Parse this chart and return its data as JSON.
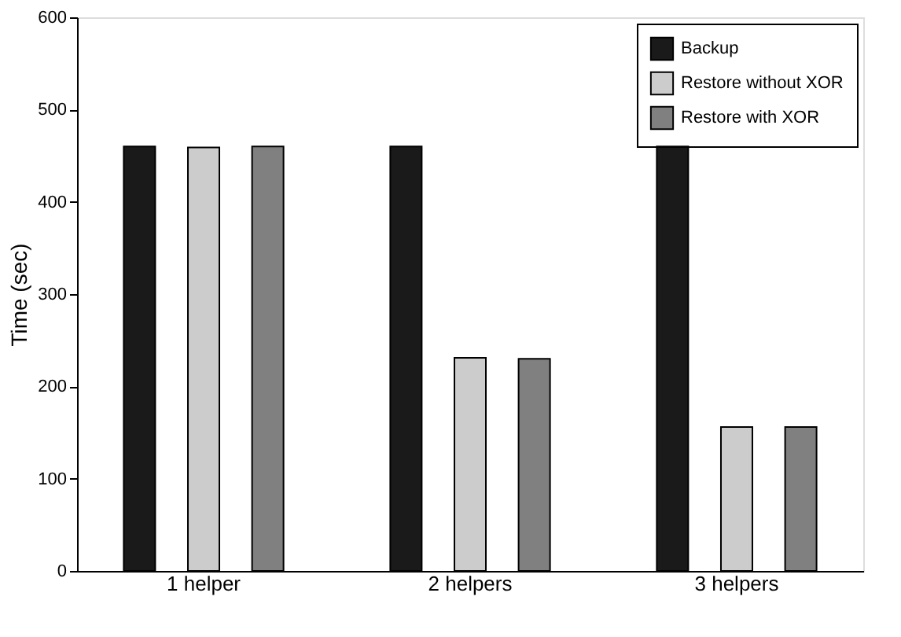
{
  "chart_data": {
    "type": "bar",
    "ylabel": "Time (sec)",
    "categories": [
      "1 helper",
      "2 helpers",
      "3 helpers"
    ],
    "series": [
      {
        "name": "Backup",
        "color": "#1a1a1a",
        "values": [
          460,
          460,
          460
        ]
      },
      {
        "name": "Restore without XOR",
        "color": "#cccccc",
        "values": [
          459,
          231,
          156
        ]
      },
      {
        "name": "Restore with XOR",
        "color": "#808080",
        "values": [
          460,
          230,
          156
        ]
      }
    ],
    "ylim": [
      0,
      600
    ],
    "yticks": [
      0,
      100,
      200,
      300,
      400,
      500,
      600
    ],
    "grid": false,
    "legend": "top right"
  }
}
